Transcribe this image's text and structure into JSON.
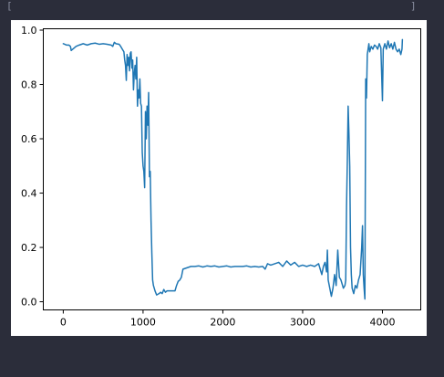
{
  "theme": {
    "background": "#2b2d3a",
    "figure": "#ffffff",
    "line_color": "#1f77b4",
    "strip_text": "#8a8ea0"
  },
  "top_strip": {
    "left_glyph": "[",
    "right_glyph": "]"
  },
  "chart_data": {
    "type": "line",
    "title": "",
    "xlabel": "",
    "ylabel": "",
    "xlim": [
      -250,
      4480
    ],
    "ylim": [
      -0.03,
      1.005
    ],
    "xticks": [
      0,
      1000,
      2000,
      3000,
      4000
    ],
    "xtick_labels": [
      "0",
      "1000",
      "2000",
      "3000",
      "4000"
    ],
    "yticks": [
      0.0,
      0.2,
      0.4,
      0.6,
      0.8,
      1.0
    ],
    "ytick_labels": [
      "0.0",
      "0.2",
      "0.4",
      "0.6",
      "0.8",
      "1.0"
    ],
    "grid": false,
    "legend": "none",
    "series": [
      {
        "color": "#1f77b4",
        "points": [
          [
            0,
            0.95
          ],
          [
            40,
            0.945
          ],
          [
            70,
            0.945
          ],
          [
            90,
            0.94
          ],
          [
            100,
            0.925
          ],
          [
            120,
            0.93
          ],
          [
            140,
            0.935
          ],
          [
            160,
            0.94
          ],
          [
            200,
            0.945
          ],
          [
            250,
            0.95
          ],
          [
            300,
            0.945
          ],
          [
            350,
            0.95
          ],
          [
            400,
            0.952
          ],
          [
            450,
            0.948
          ],
          [
            500,
            0.95
          ],
          [
            550,
            0.948
          ],
          [
            600,
            0.945
          ],
          [
            620,
            0.94
          ],
          [
            640,
            0.955
          ],
          [
            660,
            0.95
          ],
          [
            700,
            0.948
          ],
          [
            720,
            0.94
          ],
          [
            740,
            0.93
          ],
          [
            760,
            0.92
          ],
          [
            770,
            0.89
          ],
          [
            780,
            0.87
          ],
          [
            790,
            0.815
          ],
          [
            800,
            0.91
          ],
          [
            810,
            0.87
          ],
          [
            820,
            0.9
          ],
          [
            830,
            0.85
          ],
          [
            840,
            0.915
          ],
          [
            850,
            0.92
          ],
          [
            860,
            0.86
          ],
          [
            870,
            0.89
          ],
          [
            880,
            0.78
          ],
          [
            890,
            0.84
          ],
          [
            900,
            0.87
          ],
          [
            910,
            0.82
          ],
          [
            920,
            0.9
          ],
          [
            930,
            0.72
          ],
          [
            940,
            0.78
          ],
          [
            950,
            0.75
          ],
          [
            960,
            0.82
          ],
          [
            970,
            0.73
          ],
          [
            980,
            0.72
          ],
          [
            990,
            0.55
          ],
          [
            1000,
            0.5
          ],
          [
            1010,
            0.48
          ],
          [
            1020,
            0.42
          ],
          [
            1030,
            0.7
          ],
          [
            1040,
            0.6
          ],
          [
            1050,
            0.72
          ],
          [
            1060,
            0.65
          ],
          [
            1070,
            0.77
          ],
          [
            1080,
            0.46
          ],
          [
            1090,
            0.48
          ],
          [
            1100,
            0.3
          ],
          [
            1110,
            0.18
          ],
          [
            1120,
            0.08
          ],
          [
            1130,
            0.06
          ],
          [
            1150,
            0.04
          ],
          [
            1170,
            0.025
          ],
          [
            1200,
            0.03
          ],
          [
            1220,
            0.035
          ],
          [
            1240,
            0.03
          ],
          [
            1260,
            0.045
          ],
          [
            1280,
            0.035
          ],
          [
            1300,
            0.04
          ],
          [
            1350,
            0.04
          ],
          [
            1400,
            0.04
          ],
          [
            1420,
            0.06
          ],
          [
            1440,
            0.075
          ],
          [
            1460,
            0.08
          ],
          [
            1480,
            0.09
          ],
          [
            1500,
            0.12
          ],
          [
            1550,
            0.125
          ],
          [
            1600,
            0.13
          ],
          [
            1650,
            0.13
          ],
          [
            1700,
            0.132
          ],
          [
            1750,
            0.128
          ],
          [
            1800,
            0.132
          ],
          [
            1850,
            0.13
          ],
          [
            1900,
            0.132
          ],
          [
            1950,
            0.128
          ],
          [
            2000,
            0.13
          ],
          [
            2050,
            0.132
          ],
          [
            2100,
            0.128
          ],
          [
            2150,
            0.13
          ],
          [
            2200,
            0.13
          ],
          [
            2250,
            0.13
          ],
          [
            2300,
            0.132
          ],
          [
            2350,
            0.128
          ],
          [
            2400,
            0.13
          ],
          [
            2450,
            0.128
          ],
          [
            2500,
            0.13
          ],
          [
            2530,
            0.12
          ],
          [
            2560,
            0.14
          ],
          [
            2600,
            0.135
          ],
          [
            2650,
            0.14
          ],
          [
            2700,
            0.145
          ],
          [
            2750,
            0.13
          ],
          [
            2800,
            0.15
          ],
          [
            2850,
            0.135
          ],
          [
            2900,
            0.145
          ],
          [
            2950,
            0.13
          ],
          [
            3000,
            0.135
          ],
          [
            3050,
            0.13
          ],
          [
            3100,
            0.135
          ],
          [
            3150,
            0.13
          ],
          [
            3200,
            0.14
          ],
          [
            3220,
            0.12
          ],
          [
            3240,
            0.1
          ],
          [
            3260,
            0.13
          ],
          [
            3280,
            0.145
          ],
          [
            3300,
            0.11
          ],
          [
            3310,
            0.19
          ],
          [
            3320,
            0.08
          ],
          [
            3340,
            0.05
          ],
          [
            3360,
            0.02
          ],
          [
            3380,
            0.05
          ],
          [
            3400,
            0.1
          ],
          [
            3420,
            0.06
          ],
          [
            3440,
            0.19
          ],
          [
            3460,
            0.09
          ],
          [
            3480,
            0.08
          ],
          [
            3500,
            0.06
          ],
          [
            3510,
            0.05
          ],
          [
            3530,
            0.06
          ],
          [
            3540,
            0.08
          ],
          [
            3550,
            0.35
          ],
          [
            3560,
            0.52
          ],
          [
            3570,
            0.72
          ],
          [
            3580,
            0.62
          ],
          [
            3590,
            0.5
          ],
          [
            3600,
            0.2
          ],
          [
            3610,
            0.1
          ],
          [
            3620,
            0.05
          ],
          [
            3640,
            0.03
          ],
          [
            3660,
            0.06
          ],
          [
            3680,
            0.05
          ],
          [
            3700,
            0.08
          ],
          [
            3720,
            0.1
          ],
          [
            3740,
            0.2
          ],
          [
            3750,
            0.28
          ],
          [
            3760,
            0.1
          ],
          [
            3770,
            0.05
          ],
          [
            3780,
            0.01
          ],
          [
            3790,
            0.82
          ],
          [
            3800,
            0.75
          ],
          [
            3810,
            0.91
          ],
          [
            3820,
            0.93
          ],
          [
            3830,
            0.95
          ],
          [
            3840,
            0.92
          ],
          [
            3860,
            0.94
          ],
          [
            3880,
            0.93
          ],
          [
            3900,
            0.945
          ],
          [
            3920,
            0.94
          ],
          [
            3940,
            0.93
          ],
          [
            3960,
            0.95
          ],
          [
            3980,
            0.935
          ],
          [
            4000,
            0.74
          ],
          [
            4010,
            0.93
          ],
          [
            4030,
            0.95
          ],
          [
            4050,
            0.93
          ],
          [
            4070,
            0.96
          ],
          [
            4090,
            0.935
          ],
          [
            4110,
            0.95
          ],
          [
            4130,
            0.93
          ],
          [
            4150,
            0.955
          ],
          [
            4170,
            0.93
          ],
          [
            4190,
            0.92
          ],
          [
            4210,
            0.93
          ],
          [
            4230,
            0.91
          ],
          [
            4245,
            0.93
          ],
          [
            4250,
            0.965
          ]
        ]
      }
    ]
  }
}
